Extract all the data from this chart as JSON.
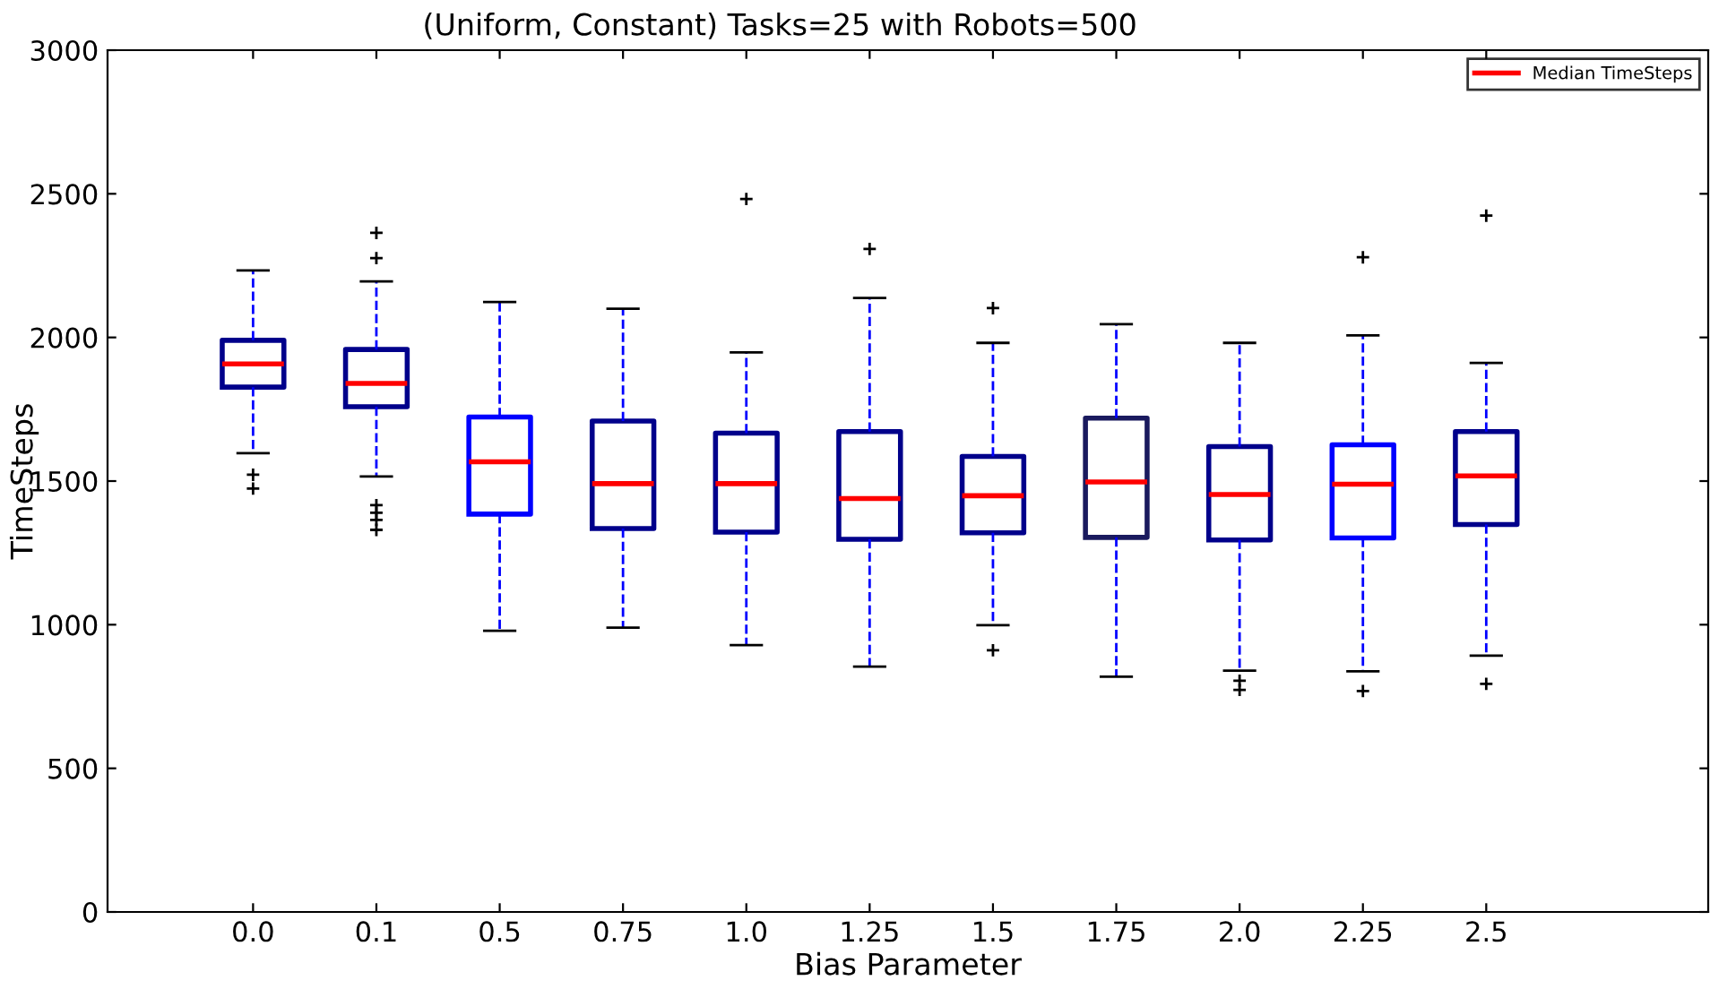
{
  "chart_data": {
    "type": "box",
    "title": "(Uniform, Constant) Tasks=25 with Robots=500",
    "xlabel": "Bias Parameter",
    "ylabel": "TimeSteps",
    "categories": [
      "0.0",
      "0.1",
      "0.5",
      "0.75",
      "1.0",
      "1.25",
      "1.5",
      "1.75",
      "2.0",
      "2.25",
      "2.5"
    ],
    "ylim": [
      0,
      3000
    ],
    "yticks": [
      0,
      500,
      1000,
      1500,
      2000,
      2500,
      3000
    ],
    "grid": false,
    "legend": "top right",
    "series": [
      {
        "name": "Median TimeSteps",
        "color": "#ff0000",
        "colors": [
          "#00008b",
          "#00008b",
          "#0000ff",
          "#00008b",
          "#00008b",
          "#00008b",
          "#00008b",
          "#1a1a5e",
          "#00008b",
          "#0000ff",
          "#00008b"
        ],
        "boxes": [
          {
            "low": 1597,
            "q1": 1827,
            "median": 1908,
            "q3": 1990,
            "high": 2233,
            "outliers": [
              1522,
              1474
            ]
          },
          {
            "low": 1516,
            "q1": 1759,
            "median": 1840,
            "q3": 1958,
            "high": 2195,
            "outliers": [
              2364,
              2276,
              1416,
              1390,
              1365,
              1330
            ]
          },
          {
            "low": 979,
            "q1": 1385,
            "median": 1567,
            "q3": 1723,
            "high": 2123
          },
          {
            "low": 990,
            "q1": 1335,
            "median": 1491,
            "q3": 1709,
            "high": 2100
          },
          {
            "low": 929,
            "q1": 1322,
            "median": 1491,
            "q3": 1667,
            "high": 1948,
            "outliers": [
              2482
            ]
          },
          {
            "low": 854,
            "q1": 1297,
            "median": 1439,
            "q3": 1672,
            "high": 2137,
            "outliers": [
              2308
            ]
          },
          {
            "low": 998,
            "q1": 1320,
            "median": 1449,
            "q3": 1586,
            "high": 1981,
            "outliers": [
              2102,
              911
            ]
          },
          {
            "low": 819,
            "q1": 1304,
            "median": 1497,
            "q3": 1719,
            "high": 2046
          },
          {
            "low": 840,
            "q1": 1295,
            "median": 1453,
            "q3": 1620,
            "high": 1981,
            "outliers": [
              805,
              773
            ]
          },
          {
            "low": 838,
            "q1": 1302,
            "median": 1489,
            "q3": 1626,
            "high": 2007,
            "outliers": [
              2279,
              769
            ]
          },
          {
            "low": 892,
            "q1": 1349,
            "median": 1518,
            "q3": 1672,
            "high": 1911,
            "outliers": [
              2424,
              794
            ]
          }
        ]
      }
    ]
  }
}
